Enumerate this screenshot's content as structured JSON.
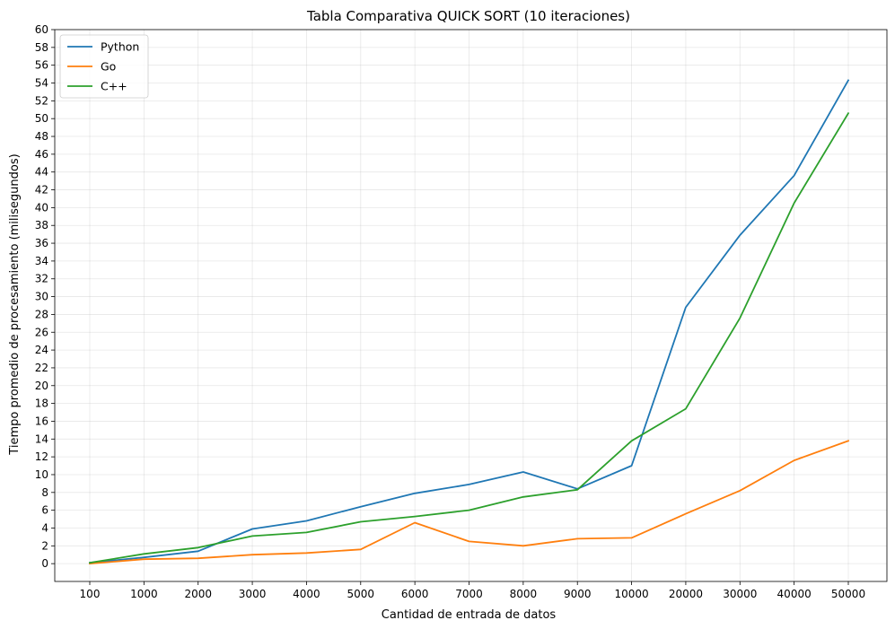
{
  "chart_data": {
    "type": "line",
    "title": "Tabla Comparativa QUICK SORT (10 iteraciones)",
    "xlabel": "Cantidad de entrada de datos",
    "ylabel": "Tiempo promedio de procesamiento (milisegundos)",
    "categories": [
      "100",
      "1000",
      "2000",
      "3000",
      "4000",
      "5000",
      "6000",
      "7000",
      "8000",
      "9000",
      "10000",
      "20000",
      "30000",
      "40000",
      "50000"
    ],
    "ylim": [
      -2,
      60
    ],
    "yticks": [
      0,
      2,
      4,
      6,
      8,
      10,
      12,
      14,
      16,
      18,
      20,
      22,
      24,
      26,
      28,
      30,
      32,
      34,
      36,
      38,
      40,
      42,
      44,
      46,
      48,
      50,
      52,
      54,
      56,
      58,
      60
    ],
    "grid": true,
    "legend_position": "top-left",
    "series": [
      {
        "name": "Python",
        "color": "#1f77b4",
        "values": [
          0.1,
          0.7,
          1.4,
          3.9,
          4.8,
          6.4,
          7.9,
          8.9,
          10.3,
          8.4,
          11.0,
          28.8,
          36.9,
          43.6,
          54.3
        ]
      },
      {
        "name": "Go",
        "color": "#ff7f0e",
        "values": [
          0.0,
          0.5,
          0.6,
          1.0,
          1.2,
          1.6,
          4.6,
          2.5,
          2.0,
          2.8,
          2.9,
          5.6,
          8.2,
          11.6,
          13.8
        ]
      },
      {
        "name": "C++",
        "color": "#2ca02c",
        "values": [
          0.1,
          1.1,
          1.8,
          3.1,
          3.5,
          4.7,
          5.3,
          6.0,
          7.5,
          8.3,
          13.8,
          17.4,
          27.6,
          40.5,
          50.6
        ]
      }
    ]
  }
}
